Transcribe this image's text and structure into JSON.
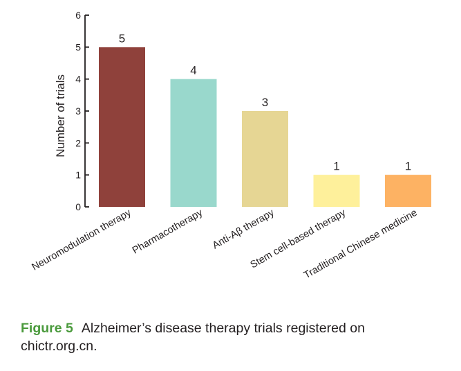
{
  "chart_data": {
    "type": "bar",
    "ylabel": "Number of trials",
    "xlabel": "",
    "ylim": [
      0,
      6
    ],
    "yticks": [
      0,
      1,
      2,
      3,
      4,
      5,
      6
    ],
    "categories": [
      "Neuromodulation therapy",
      "Pharmacotherapy",
      "Anti-Aβ therapy",
      "Stem cell-based therapy",
      "Traditional Chinese medicine"
    ],
    "values": [
      5,
      4,
      3,
      1,
      1
    ],
    "data_labels": [
      "5",
      "4",
      "3",
      "1",
      "1"
    ],
    "colors": [
      "#8f413b",
      "#99d8cc",
      "#e6d694",
      "#fef09b",
      "#fdb263"
    ],
    "grid": false,
    "legend": "none"
  },
  "caption": {
    "label": "Figure 5",
    "text": "Alzheimer’s disease therapy trials registered on chictr.org.cn."
  }
}
